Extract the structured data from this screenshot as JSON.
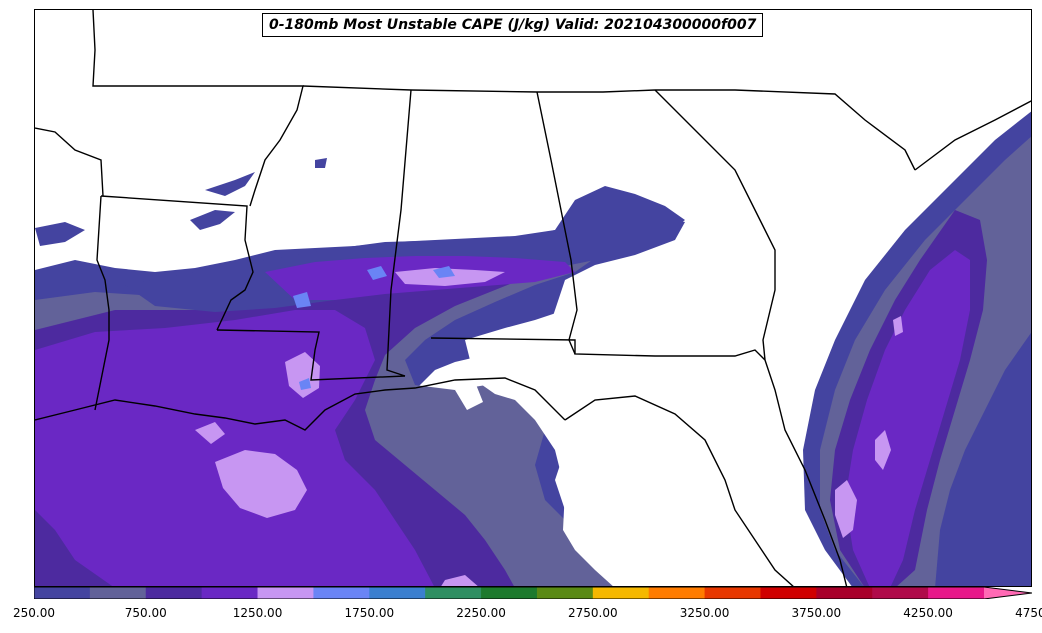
{
  "title": "0-180mb Most Unstable CAPE (J/kg) Valid: 202104300000f007",
  "colorbar": {
    "levels": [
      250,
      500,
      750,
      1000,
      1250,
      1500,
      1750,
      2000,
      2250,
      2500,
      2750,
      3000,
      3250,
      3500,
      3750,
      4000,
      4250,
      4500,
      4750
    ],
    "colors": [
      "#4444a0",
      "#626299",
      "#4d2a9f",
      "#6a28c4",
      "#c796f2",
      "#6a84f5",
      "#3a7fcf",
      "#2e8f62",
      "#1d7a2d",
      "#5a8a14",
      "#f5b800",
      "#ff7c00",
      "#e83800",
      "#d00000",
      "#a8002a",
      "#b00a4a",
      "#e8188a",
      "#ff69b4"
    ],
    "extend": "max",
    "tick_labels": [
      "250.00",
      "750.00",
      "1250.00",
      "1750.00",
      "2250.00",
      "2750.00",
      "3250.00",
      "3750.00",
      "4250.00",
      "4750.00"
    ]
  },
  "map": {
    "projection": "regional",
    "features": [
      "coastline",
      "state-borders"
    ],
    "region": "southeastern-united-states"
  }
}
